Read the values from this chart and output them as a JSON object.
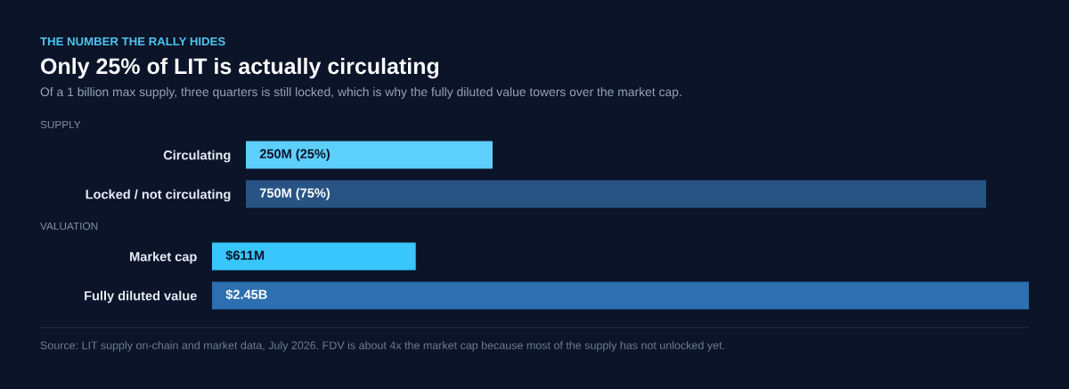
{
  "chart_data": [
    {
      "type": "bar",
      "orientation": "horizontal",
      "title": "Only 25% of LIT is actually circulating",
      "subtitle": "Of a 1 billion max supply, three quarters is still locked, which is why the fully diluted value towers over the market cap.",
      "annotations": [
        "THE NUMBER THE RALLY HIDES"
      ],
      "ylabel": "SUPPLY",
      "categories": [
        "Circulating",
        "Locked / not circulating"
      ],
      "values": [
        250000000,
        750000000
      ],
      "colors": [
        "#5ccffd",
        "#285483"
      ],
      "value_labels": [
        "250M (25%)",
        "750M (75%)"
      ],
      "tick_labels": "y"
    },
    {
      "type": "bar",
      "orientation": "horizontal",
      "ylabel": "VALUATION",
      "categories": [
        "Market cap",
        "Fully diluted value"
      ],
      "values": [
        611000000,
        2450000000
      ],
      "colors": [
        "#38c6fc",
        "#2d6fb0"
      ],
      "value_labels": [
        "$611M",
        "$2.45B"
      ],
      "tick_labels": "y",
      "annotations": [
        "Source: LIT supply on-chain and market data, July 2026. FDV is about 4x the market cap because most of the supply has not unlocked yet."
      ]
    }
  ]
}
